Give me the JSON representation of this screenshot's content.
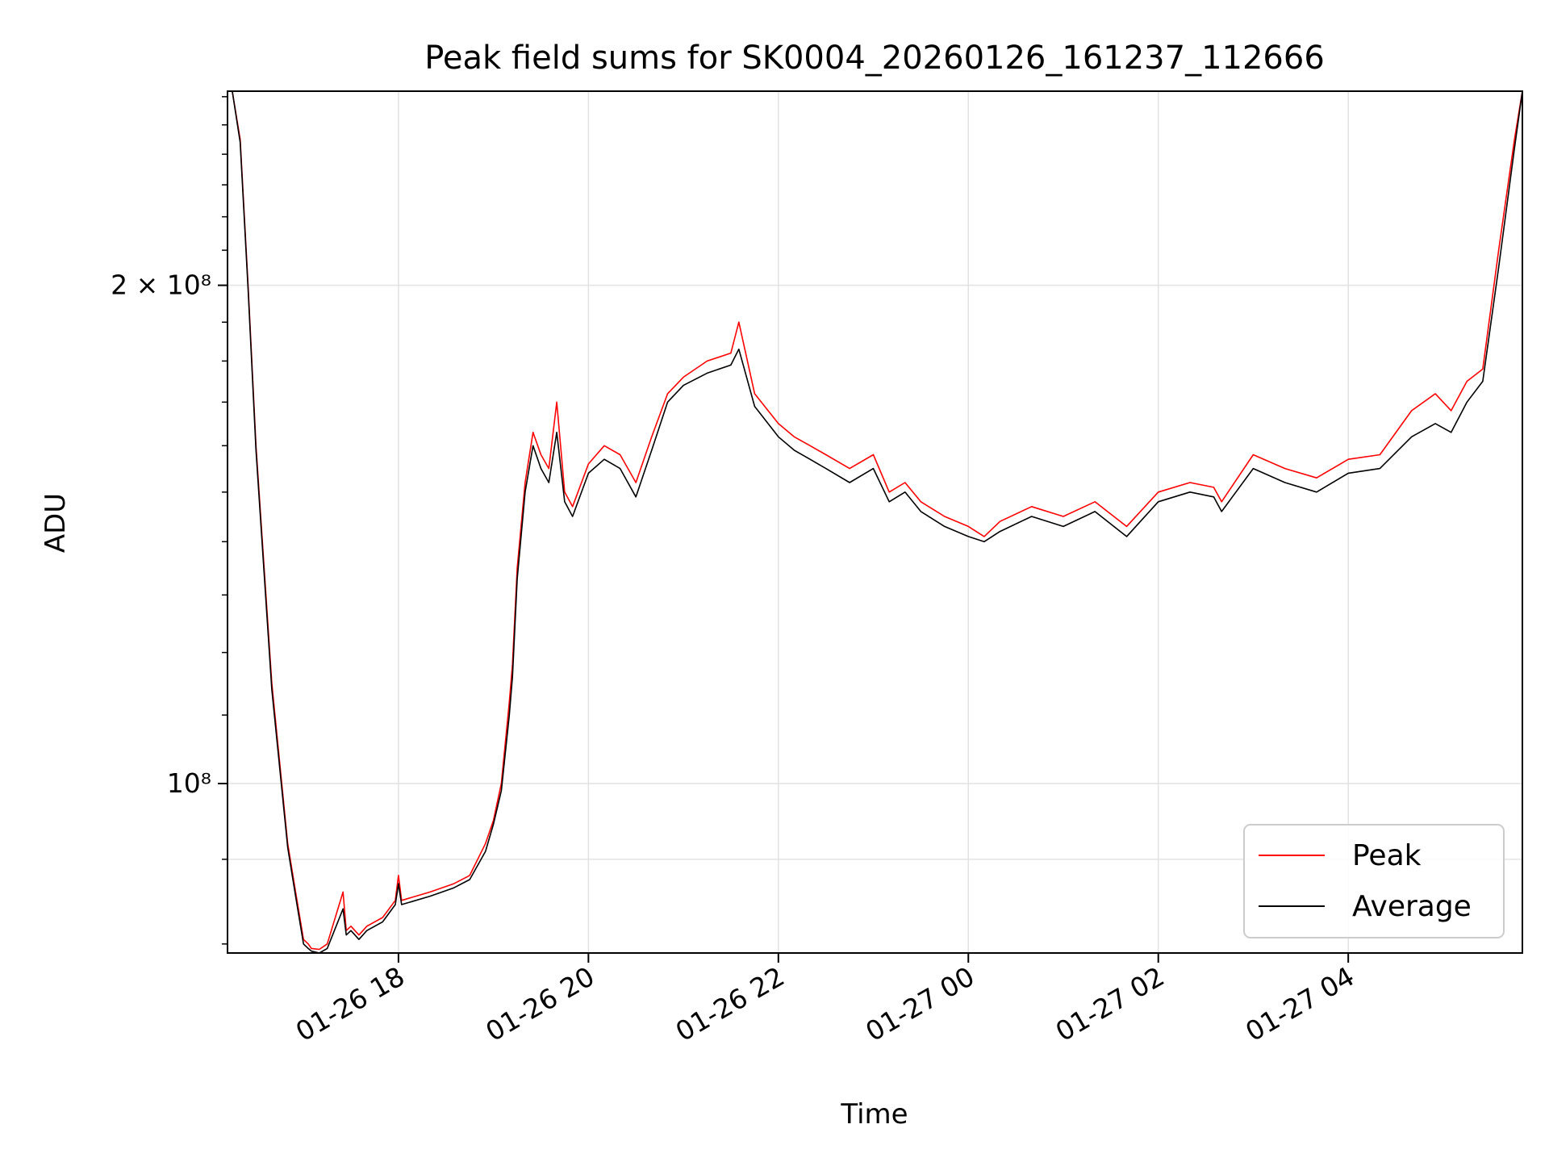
{
  "chart_data": {
    "type": "line",
    "title": "Peak field sums for SK0004_20260126_161237_112666",
    "xlabel": "Time",
    "ylabel": "ADU",
    "yscale": "log",
    "xlim": [
      "2026-01-26 16:12",
      "2026-01-27 05:50"
    ],
    "ylim": [
      79000000,
      262000000
    ],
    "grid": true,
    "legend_position": "lower-right",
    "x_ticks": [
      {
        "t": "2026-01-26 18:00",
        "label": "01-26 18"
      },
      {
        "t": "2026-01-26 20:00",
        "label": "01-26 20"
      },
      {
        "t": "2026-01-26 22:00",
        "label": "01-26 22"
      },
      {
        "t": "2026-01-27 00:00",
        "label": "01-27 00"
      },
      {
        "t": "2026-01-27 02:00",
        "label": "01-27 02"
      },
      {
        "t": "2026-01-27 04:00",
        "label": "01-27 04"
      }
    ],
    "y_ticks": [
      {
        "value": 100000000,
        "label": "10⁸"
      },
      {
        "value": 200000000,
        "label": "2 × 10⁸"
      }
    ],
    "x": [
      "2026-01-26 16:12",
      "2026-01-26 16:15",
      "2026-01-26 16:20",
      "2026-01-26 16:25",
      "2026-01-26 16:30",
      "2026-01-26 16:40",
      "2026-01-26 16:50",
      "2026-01-26 16:55",
      "2026-01-26 17:00",
      "2026-01-26 17:03",
      "2026-01-26 17:05",
      "2026-01-26 17:10",
      "2026-01-26 17:15",
      "2026-01-26 17:25",
      "2026-01-26 17:27",
      "2026-01-26 17:30",
      "2026-01-26 17:35",
      "2026-01-26 17:40",
      "2026-01-26 17:50",
      "2026-01-26 17:58",
      "2026-01-26 18:00",
      "2026-01-26 18:02",
      "2026-01-26 18:20",
      "2026-01-26 18:35",
      "2026-01-26 18:45",
      "2026-01-26 18:55",
      "2026-01-26 19:00",
      "2026-01-26 19:05",
      "2026-01-26 19:10",
      "2026-01-26 19:12",
      "2026-01-26 19:15",
      "2026-01-26 19:20",
      "2026-01-26 19:25",
      "2026-01-26 19:30",
      "2026-01-26 19:35",
      "2026-01-26 19:40",
      "2026-01-26 19:45",
      "2026-01-26 19:50",
      "2026-01-26 20:00",
      "2026-01-26 20:10",
      "2026-01-26 20:20",
      "2026-01-26 20:30",
      "2026-01-26 20:40",
      "2026-01-26 20:50",
      "2026-01-26 21:00",
      "2026-01-26 21:15",
      "2026-01-26 21:30",
      "2026-01-26 21:35",
      "2026-01-26 21:45",
      "2026-01-26 22:00",
      "2026-01-26 22:10",
      "2026-01-26 22:20",
      "2026-01-26 22:30",
      "2026-01-26 22:45",
      "2026-01-26 23:00",
      "2026-01-26 23:10",
      "2026-01-26 23:20",
      "2026-01-26 23:30",
      "2026-01-26 23:45",
      "2026-01-27 00:00",
      "2026-01-27 00:10",
      "2026-01-27 00:20",
      "2026-01-27 00:40",
      "2026-01-27 01:00",
      "2026-01-27 01:20",
      "2026-01-27 01:40",
      "2026-01-27 02:00",
      "2026-01-27 02:20",
      "2026-01-27 02:35",
      "2026-01-27 02:40",
      "2026-01-27 03:00",
      "2026-01-27 03:20",
      "2026-01-27 03:40",
      "2026-01-27 04:00",
      "2026-01-27 04:20",
      "2026-01-27 04:40",
      "2026-01-27 04:55",
      "2026-01-27 05:05",
      "2026-01-27 05:15",
      "2026-01-27 05:25",
      "2026-01-27 05:35",
      "2026-01-27 05:45",
      "2026-01-27 05:50"
    ],
    "series": [
      {
        "name": "Peak",
        "color": "#ff0000",
        "values": [
          262000000,
          262000000,
          245000000,
          200000000,
          160000000,
          115000000,
          92000000,
          86000000,
          80500000,
          80000000,
          79500000,
          79400000,
          80000000,
          86000000,
          81500000,
          82000000,
          81000000,
          82000000,
          83000000,
          85000000,
          88000000,
          85000000,
          86000000,
          87000000,
          88000000,
          92000000,
          95000000,
          100000000,
          112000000,
          118000000,
          135000000,
          152000000,
          163000000,
          158000000,
          155000000,
          170000000,
          150000000,
          147000000,
          156000000,
          160000000,
          158000000,
          152000000,
          162000000,
          172000000,
          176000000,
          180000000,
          182000000,
          190000000,
          172000000,
          165000000,
          162000000,
          160000000,
          158000000,
          155000000,
          158000000,
          150000000,
          152000000,
          148000000,
          145000000,
          143000000,
          141000000,
          144000000,
          147000000,
          145000000,
          148000000,
          143000000,
          150000000,
          152000000,
          151000000,
          148000000,
          158000000,
          155000000,
          153000000,
          157000000,
          158000000,
          168000000,
          172000000,
          168000000,
          175000000,
          178000000,
          210000000,
          245000000,
          262000000
        ]
      },
      {
        "name": "Average",
        "color": "#000000",
        "values": [
          262000000,
          262000000,
          244000000,
          199000000,
          159000000,
          114000000,
          91500000,
          85500000,
          80000000,
          79500000,
          79200000,
          79000000,
          79500000,
          84000000,
          81000000,
          81500000,
          80500000,
          81500000,
          82500000,
          84500000,
          87000000,
          84500000,
          85500000,
          86500000,
          87500000,
          91000000,
          94500000,
          99000000,
          110000000,
          116000000,
          133000000,
          150000000,
          160000000,
          155000000,
          152000000,
          163000000,
          148000000,
          145000000,
          154000000,
          157000000,
          155000000,
          149000000,
          159000000,
          170000000,
          174000000,
          177000000,
          179000000,
          183000000,
          169000000,
          162000000,
          159000000,
          157000000,
          155000000,
          152000000,
          155000000,
          148000000,
          150000000,
          146000000,
          143000000,
          141000000,
          140000000,
          142000000,
          145000000,
          143000000,
          146000000,
          141000000,
          148000000,
          150000000,
          149000000,
          146000000,
          155000000,
          152000000,
          150000000,
          154000000,
          155000000,
          162000000,
          165000000,
          163000000,
          170000000,
          175000000,
          205000000,
          242000000,
          262000000
        ]
      }
    ]
  }
}
